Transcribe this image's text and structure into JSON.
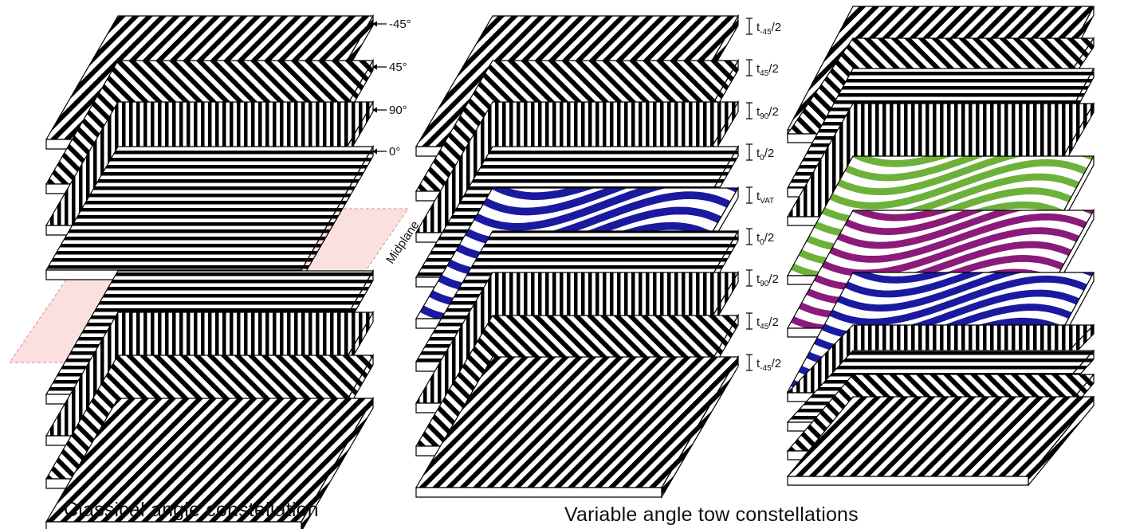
{
  "colors": {
    "stripe": "#000000",
    "background": "#ffffff",
    "midplane_fill": "#f6c8c4",
    "midplane_edge": "#e08a84",
    "vat_blue": "#1a1aa0",
    "vat_green": "#6db13a",
    "vat_purple": "#8b1a7a"
  },
  "left_stack": {
    "ply_angles": [
      "-45°",
      "45°",
      "90°",
      "0°"
    ],
    "ply_orientations": [
      "-45",
      "45",
      "90",
      "0",
      "0",
      "90",
      "45",
      "-45"
    ],
    "midplane_label": "Midplane"
  },
  "middle_stack": {
    "ply_orientations": [
      "-45",
      "45",
      "90",
      "0",
      "vat",
      "0",
      "90",
      "45",
      "-45"
    ],
    "thickness_labels": [
      {
        "main": "t",
        "sub": "-45",
        "tail": "/2"
      },
      {
        "main": "t",
        "sub": "45",
        "tail": "/2"
      },
      {
        "main": "t",
        "sub": "90",
        "tail": "/2"
      },
      {
        "main": "t",
        "sub": "0",
        "tail": "/2"
      },
      {
        "main": "t",
        "sub": "VAT",
        "tail": ""
      },
      {
        "main": "t",
        "sub": "0",
        "tail": "/2"
      },
      {
        "main": "t",
        "sub": "90",
        "tail": "/2"
      },
      {
        "main": "t",
        "sub": "45",
        "tail": "/2"
      },
      {
        "main": "t",
        "sub": "-45",
        "tail": "/2"
      }
    ]
  },
  "right_stack": {
    "ply_orientations": [
      "-45",
      "45",
      "0",
      "90",
      "vat_green",
      "vat_purple",
      "vat_blue",
      "90",
      "0",
      "45",
      "-45"
    ]
  },
  "captions": {
    "left": "Classical angle constellation",
    "right": "Variable angle tow constellations"
  }
}
